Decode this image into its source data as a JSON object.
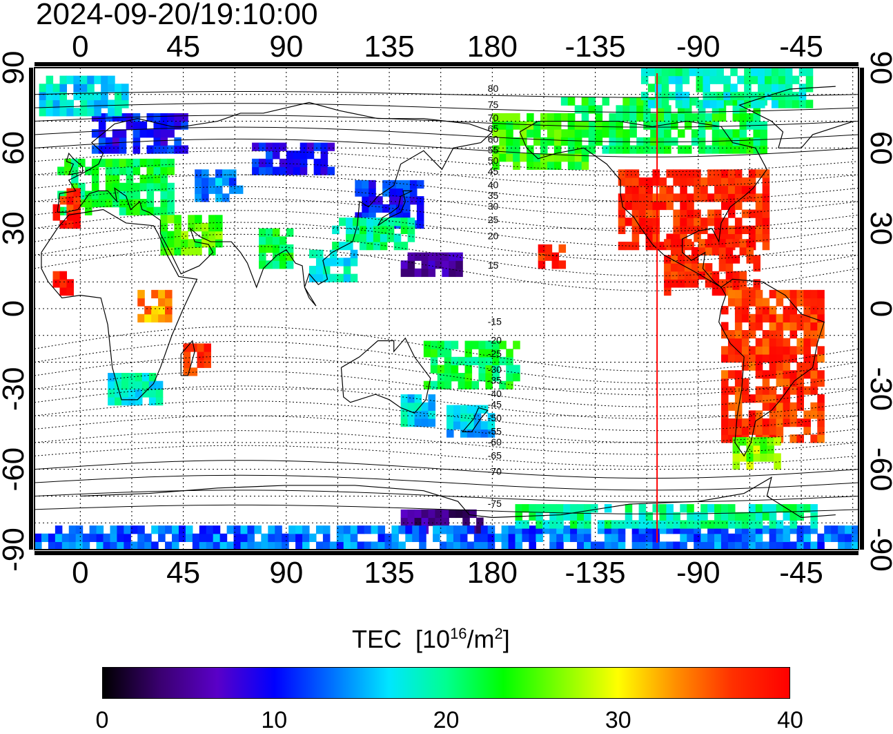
{
  "timestamp": "2024-09-20/19:10:00",
  "colorbar": {
    "title": "TEC",
    "unit_prefix": "[10",
    "unit_sup": "16",
    "unit_mid": "/m",
    "unit_sup2": "2",
    "unit_suffix": "]",
    "min": 0,
    "max": 40,
    "ticks": [
      "0",
      "10",
      "20",
      "30",
      "40"
    ],
    "colors": [
      "#000000",
      "#3a0070",
      "#5a00c8",
      "#0000ff",
      "#0070ff",
      "#00e6ff",
      "#00ff90",
      "#00ff00",
      "#80ff00",
      "#ffff00",
      "#ff9000",
      "#ff3000",
      "#ff0000"
    ]
  },
  "map": {
    "projection": "equirectangular",
    "lon_start": -20,
    "lat_range": [
      -90,
      90
    ],
    "lon_ticks": [
      "0",
      "45",
      "90",
      "135",
      "180",
      "-135",
      "-90",
      "-45"
    ],
    "lon_tick_values": [
      0,
      45,
      90,
      135,
      180,
      225,
      270,
      315
    ],
    "lat_ticks": [
      "90",
      "60",
      "30",
      "0",
      "-30",
      "-60",
      "-90"
    ],
    "lat_tick_values": [
      90,
      60,
      30,
      0,
      -30,
      -60,
      -90
    ],
    "meridian_line": {
      "lon": -108,
      "color": "#ff0000"
    },
    "contour_labels": [
      "80",
      "75",
      "70",
      "65",
      "60",
      "55",
      "50",
      "45",
      "40",
      "35",
      "30",
      "25",
      "20",
      "15",
      "-15",
      "-20",
      "-25",
      "-30",
      "-35",
      "-40",
      "-45",
      "-50",
      "-55",
      "-60",
      "-65",
      "-70",
      "-75"
    ],
    "contour_label_lats": [
      82,
      76,
      71,
      67,
      63,
      59,
      55,
      51,
      46,
      42,
      38,
      33,
      27,
      16,
      -5,
      -12,
      -17,
      -23,
      -27,
      -32,
      -36,
      -41,
      -46,
      -50,
      -55,
      -61,
      -73
    ]
  },
  "tec_regions": [
    {
      "name": "north-america-storm",
      "lon": [
        -125,
        -60
      ],
      "lat": [
        22,
        52
      ],
      "value": 38
    },
    {
      "name": "central-america",
      "lon": [
        -105,
        -65
      ],
      "lat": [
        5,
        25
      ],
      "value": 38
    },
    {
      "name": "south-america",
      "lon": [
        -80,
        -35
      ],
      "lat": [
        -50,
        5
      ],
      "value": 37
    },
    {
      "name": "patagonia",
      "lon": [
        -75,
        -55
      ],
      "lat": [
        -60,
        -48
      ],
      "value": 27
    },
    {
      "name": "canada",
      "lon": [
        -150,
        -60
      ],
      "lat": [
        58,
        78
      ],
      "value": 22
    },
    {
      "name": "alaska",
      "lon": [
        -180,
        -140
      ],
      "lat": [
        52,
        72
      ],
      "value": 24
    },
    {
      "name": "arctic-west",
      "lon": [
        -115,
        -40
      ],
      "lat": [
        75,
        88
      ],
      "value": 19
    },
    {
      "name": "europe",
      "lon": [
        -10,
        40
      ],
      "lat": [
        35,
        55
      ],
      "value": 22
    },
    {
      "name": "scandinavia",
      "lon": [
        5,
        45
      ],
      "lat": [
        58,
        72
      ],
      "value": 10
    },
    {
      "name": "greenland-sea",
      "lon": [
        -18,
        20
      ],
      "lat": [
        72,
        85
      ],
      "value": 17
    },
    {
      "name": "iberia",
      "lon": [
        -12,
        0
      ],
      "lat": [
        30,
        45
      ],
      "value": 38
    },
    {
      "name": "japan",
      "lon": [
        120,
        150
      ],
      "lat": [
        30,
        48
      ],
      "value": 11
    },
    {
      "name": "china-south",
      "lon": [
        110,
        145
      ],
      "lat": [
        22,
        33
      ],
      "value": 20
    },
    {
      "name": "south-africa",
      "lon": [
        12,
        35
      ],
      "lat": [
        -36,
        -25
      ],
      "value": 18
    },
    {
      "name": "australia-se",
      "lon": [
        140,
        155
      ],
      "lat": [
        -44,
        -32
      ],
      "value": 17
    },
    {
      "name": "new-zealand",
      "lon": [
        160,
        180
      ],
      "lat": [
        -48,
        -36
      ],
      "value": 16
    },
    {
      "name": "pacific-sw",
      "lon": [
        150,
        190
      ],
      "lat": [
        -30,
        -12
      ],
      "value": 22
    },
    {
      "name": "antarctic-east",
      "lon": [
        140,
        175
      ],
      "lat": [
        -84,
        -76
      ],
      "value": 4
    },
    {
      "name": "antarctic-belt",
      "lon": [
        -20,
        340
      ],
      "lat": [
        -90,
        -82
      ],
      "value": 13
    },
    {
      "name": "antarctic-pacific",
      "lon": [
        190,
        320
      ],
      "lat": [
        -82,
        -74
      ],
      "value": 20
    },
    {
      "name": "hawaii",
      "lon": [
        -160,
        -150
      ],
      "lat": [
        15,
        22
      ],
      "value": 38
    },
    {
      "name": "west-africa",
      "lon": [
        -12,
        -5
      ],
      "lat": [
        5,
        12
      ],
      "value": 38
    },
    {
      "name": "east-africa",
      "lon": [
        25,
        40
      ],
      "lat": [
        -5,
        5
      ],
      "value": 33
    },
    {
      "name": "madagascar",
      "lon": [
        45,
        55
      ],
      "lat": [
        -25,
        -15
      ],
      "value": 37
    },
    {
      "name": "middle-east",
      "lon": [
        35,
        60
      ],
      "lat": [
        20,
        35
      ],
      "value": 25
    },
    {
      "name": "russia-south",
      "lon": [
        50,
        70
      ],
      "lat": [
        40,
        52
      ],
      "value": 14
    },
    {
      "name": "siberia-dots",
      "lon": [
        75,
        110
      ],
      "lat": [
        50,
        60
      ],
      "value": 10
    },
    {
      "name": "india-dots",
      "lon": [
        78,
        92
      ],
      "lat": [
        15,
        28
      ],
      "value": 22
    },
    {
      "name": "sea-dots",
      "lon": [
        100,
        120
      ],
      "lat": [
        10,
        22
      ],
      "value": 18
    },
    {
      "name": "philippines",
      "lon": [
        140,
        165
      ],
      "lat": [
        12,
        20
      ],
      "value": 5
    }
  ]
}
